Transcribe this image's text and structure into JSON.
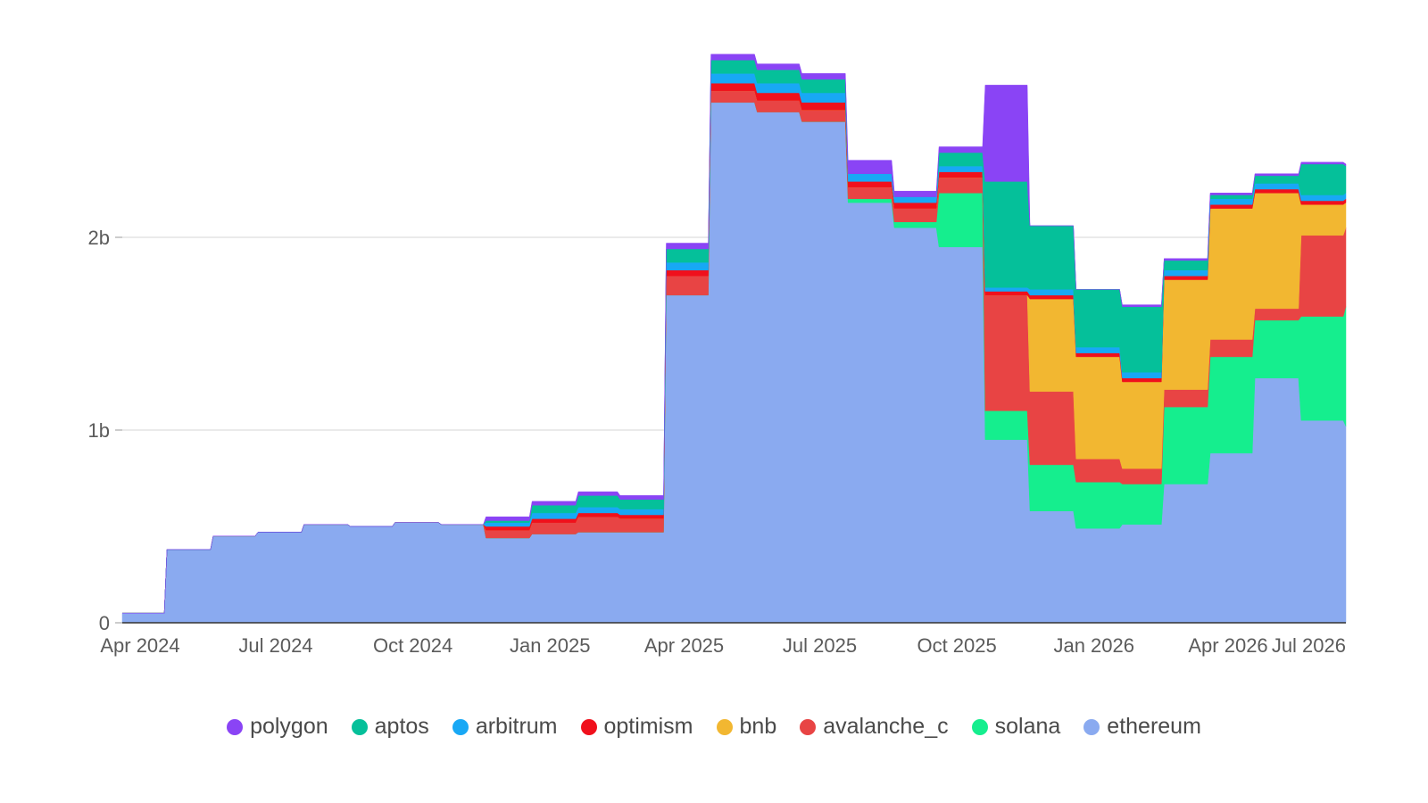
{
  "chart_data": {
    "type": "area",
    "stacked": true,
    "x_unit": "month",
    "x_ticks": [
      {
        "value": "2024-04-01",
        "label": "Apr 2024"
      },
      {
        "value": "2024-07-01",
        "label": "Jul 2024"
      },
      {
        "value": "2024-10-01",
        "label": "Oct 2024"
      },
      {
        "value": "2025-01-01",
        "label": "Jan 2025"
      },
      {
        "value": "2025-04-01",
        "label": "Apr 2025"
      },
      {
        "value": "2025-07-01",
        "label": "Jul 2025"
      },
      {
        "value": "2025-10-01",
        "label": "Oct 2025"
      },
      {
        "value": "2026-01-01",
        "label": "Jan 2026"
      },
      {
        "value": "2026-04-01",
        "label": "Apr 2026"
      },
      {
        "value": "2026-07-01",
        "label": "Jul 2026"
      }
    ],
    "y_ticks": [
      {
        "value": 0,
        "label": "0"
      },
      {
        "value": 1000000000,
        "label": "1b"
      },
      {
        "value": 2000000000,
        "label": "2b"
      }
    ],
    "ylim": [
      0,
      3000000000
    ],
    "xlim": [
      "2024-04-01",
      "2026-07-01"
    ],
    "grid": "horizontal",
    "legend_position": "bottom",
    "x": [
      "2024-04-01",
      "2024-05-01",
      "2024-06-01",
      "2024-07-01",
      "2024-08-01",
      "2024-09-01",
      "2024-10-01",
      "2024-11-01",
      "2024-12-01",
      "2025-01-01",
      "2025-02-01",
      "2025-03-01",
      "2025-04-01",
      "2025-05-01",
      "2025-06-01",
      "2025-07-01",
      "2025-08-01",
      "2025-09-01",
      "2025-10-01",
      "2025-11-01",
      "2025-12-01",
      "2026-01-01",
      "2026-02-01",
      "2026-03-01",
      "2026-04-01",
      "2026-05-01",
      "2026-06-01",
      "2026-07-01"
    ],
    "series": [
      {
        "name": "ethereum",
        "color": "#8aaaf0",
        "values": [
          50000000,
          380000000,
          450000000,
          470000000,
          510000000,
          500000000,
          520000000,
          510000000,
          440000000,
          460000000,
          470000000,
          470000000,
          1700000000,
          2700000000,
          2650000000,
          2600000000,
          2180000000,
          2050000000,
          1950000000,
          950000000,
          580000000,
          490000000,
          510000000,
          720000000,
          880000000,
          1270000000,
          1050000000,
          1020000000
        ]
      },
      {
        "name": "solana",
        "color": "#15ee8e",
        "values": [
          0,
          0,
          0,
          0,
          0,
          0,
          0,
          0,
          0,
          0,
          0,
          0,
          0,
          0,
          0,
          0,
          20000000,
          30000000,
          280000000,
          150000000,
          240000000,
          240000000,
          210000000,
          400000000,
          500000000,
          300000000,
          540000000,
          620000000
        ]
      },
      {
        "name": "avalanche_c",
        "color": "#e84444",
        "values": [
          0,
          0,
          0,
          0,
          0,
          0,
          0,
          0,
          40000000,
          60000000,
          80000000,
          70000000,
          100000000,
          60000000,
          60000000,
          60000000,
          60000000,
          70000000,
          80000000,
          600000000,
          380000000,
          120000000,
          80000000,
          90000000,
          90000000,
          60000000,
          420000000,
          410000000
        ]
      },
      {
        "name": "bnb",
        "color": "#f2b731",
        "values": [
          0,
          0,
          0,
          0,
          0,
          0,
          0,
          0,
          0,
          0,
          0,
          0,
          0,
          0,
          0,
          0,
          0,
          0,
          0,
          0,
          480000000,
          530000000,
          450000000,
          570000000,
          680000000,
          600000000,
          160000000,
          130000000
        ]
      },
      {
        "name": "optimism",
        "color": "#f0101c",
        "values": [
          0,
          0,
          0,
          0,
          0,
          0,
          0,
          0,
          20000000,
          20000000,
          20000000,
          20000000,
          30000000,
          40000000,
          40000000,
          40000000,
          30000000,
          30000000,
          30000000,
          20000000,
          20000000,
          20000000,
          20000000,
          20000000,
          20000000,
          20000000,
          20000000,
          20000000
        ]
      },
      {
        "name": "arbitrum",
        "color": "#18a8f5",
        "values": [
          0,
          0,
          0,
          0,
          0,
          0,
          0,
          0,
          20000000,
          30000000,
          30000000,
          30000000,
          40000000,
          50000000,
          50000000,
          50000000,
          40000000,
          30000000,
          30000000,
          20000000,
          30000000,
          30000000,
          30000000,
          30000000,
          30000000,
          30000000,
          30000000,
          30000000
        ]
      },
      {
        "name": "aptos",
        "color": "#05c09a",
        "values": [
          0,
          0,
          0,
          0,
          0,
          0,
          0,
          0,
          10000000,
          40000000,
          60000000,
          50000000,
          70000000,
          70000000,
          70000000,
          70000000,
          0,
          0,
          70000000,
          550000000,
          330000000,
          300000000,
          340000000,
          50000000,
          20000000,
          40000000,
          160000000,
          140000000
        ]
      },
      {
        "name": "polygon",
        "color": "#8a44f5",
        "values": [
          0,
          0,
          0,
          0,
          0,
          0,
          0,
          0,
          20000000,
          20000000,
          20000000,
          20000000,
          30000000,
          30000000,
          30000000,
          30000000,
          70000000,
          30000000,
          30000000,
          500000000,
          0,
          0,
          10000000,
          10000000,
          10000000,
          10000000,
          10000000,
          10000000
        ]
      }
    ],
    "legend_order": [
      "polygon",
      "aptos",
      "arbitrum",
      "optimism",
      "bnb",
      "avalanche_c",
      "solana",
      "ethereum"
    ]
  }
}
